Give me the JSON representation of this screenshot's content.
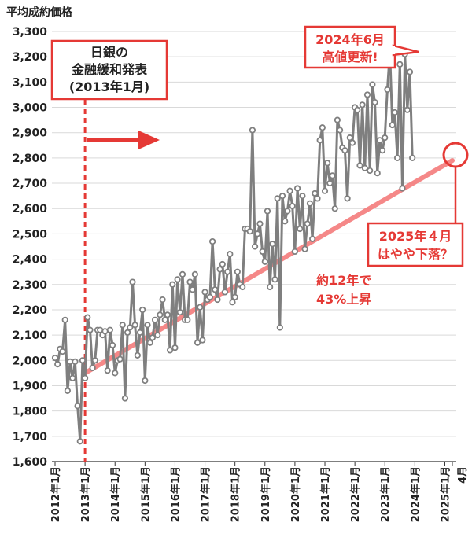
{
  "chart_data": {
    "type": "line",
    "ylabel": "平均成約価格",
    "ylim": [
      1600,
      3300
    ],
    "yticks": [
      "1,600",
      "1,700",
      "1,800",
      "1,900",
      "2,000",
      "2,100",
      "2,200",
      "2,300",
      "2,400",
      "2,500",
      "2,600",
      "2,700",
      "2,800",
      "2,900",
      "3,000",
      "3,100",
      "3,200",
      "3,300"
    ],
    "xticks": [
      "2012年1月",
      "2013年1月",
      "2014年1月",
      "2015年1月",
      "2016年1月",
      "2017年1月",
      "2018年1月",
      "2019年1月",
      "2020年1月",
      "2021年1月",
      "2022年1月",
      "2023年1月",
      "2024年1月",
      "2025年1月",
      "4月"
    ],
    "series": [
      {
        "start": "2012-01",
        "color": "#7f7f7f",
        "values": [
          2010,
          1985,
          2045,
          2035,
          2160,
          1880,
          1995,
          1930,
          1995,
          1820,
          1680,
          2000,
          1930,
          2170,
          2120,
          1970,
          2000,
          2120,
          2120,
          2100,
          2115,
          1960,
          2120,
          2060,
          1950,
          2000,
          2005,
          2140,
          1850,
          2110,
          2130,
          2310,
          2140,
          2020,
          2110,
          2200,
          1920,
          2140,
          2070,
          2090,
          2160,
          2100,
          2180,
          2240,
          2160,
          2180,
          2040,
          2300,
          2050,
          2320,
          2190,
          2340,
          2160,
          2160,
          2310,
          2280,
          2340,
          2070,
          2210,
          2080,
          2270,
          2240,
          2250,
          2470,
          2280,
          2240,
          2360,
          2380,
          2270,
          2350,
          2420,
          2230,
          2250,
          2350,
          2300,
          2290,
          2520,
          2520,
          2510,
          2910,
          2450,
          2500,
          2540,
          2430,
          2390,
          2590,
          2290,
          2460,
          2320,
          2640,
          2130,
          2650,
          2550,
          2590,
          2670,
          2610,
          2430,
          2680,
          2520,
          2650,
          2440,
          2540,
          2620,
          2480,
          2660,
          2640,
          2870,
          2920,
          2670,
          2780,
          2700,
          2730,
          2600,
          2950,
          2910,
          2840,
          2830,
          2640,
          2880,
          2860,
          3000,
          2990,
          2770,
          3010,
          2760,
          3050,
          2750,
          3090,
          3020,
          2740,
          2870,
          2830,
          2880,
          3070,
          3220,
          2930,
          2980,
          2800,
          3170,
          2680,
          3210,
          2990,
          3140,
          2800
        ]
      }
    ],
    "trend": {
      "from": "2013-01",
      "to": "2025-04",
      "from_value": 1950,
      "to_value": 2790,
      "color": "#f47c7c"
    },
    "marker": {
      "date": "2013-01",
      "label": "日銀の金融緩和発表",
      "label_date": "(2013年1月)"
    },
    "annotations": {
      "peak": {
        "line1": "2024年6月",
        "line2": "高値更新!"
      },
      "drop": {
        "line1": "2025年４月",
        "line2": "はやや下落？"
      },
      "growth": {
        "line1": "約12年で",
        "line2": "43%上昇"
      }
    }
  }
}
